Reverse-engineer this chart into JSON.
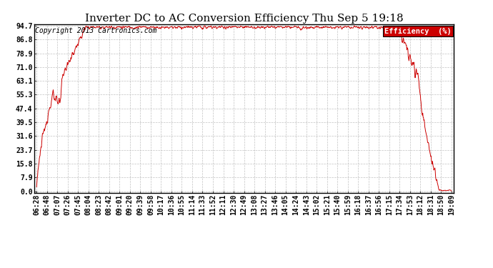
{
  "title": "Inverter DC to AC Conversion Efficiency Thu Sep 5 19:18",
  "copyright": "Copyright 2013 Cartronics.com",
  "legend_label": "Efficiency  (%)",
  "legend_bg": "#cc0000",
  "legend_fg": "#ffffff",
  "ymin": 0.0,
  "ymax": 94.7,
  "yticks": [
    0.0,
    7.9,
    15.8,
    23.7,
    31.6,
    39.5,
    47.4,
    55.3,
    63.1,
    71.0,
    78.9,
    86.8,
    94.7
  ],
  "ytick_labels": [
    "0.0",
    "7.9",
    "15.8",
    "23.7",
    "31.6",
    "39.5",
    "47.4",
    "55.3",
    "63.1",
    "71.0",
    "78.9",
    "86.8",
    "94.7"
  ],
  "xtick_labels": [
    "06:28",
    "06:48",
    "07:07",
    "07:26",
    "07:45",
    "08:04",
    "08:23",
    "08:42",
    "09:01",
    "09:20",
    "09:39",
    "09:58",
    "10:17",
    "10:36",
    "10:55",
    "11:14",
    "11:33",
    "11:52",
    "12:11",
    "12:30",
    "12:49",
    "13:08",
    "13:27",
    "13:46",
    "14:05",
    "14:24",
    "14:43",
    "15:02",
    "15:21",
    "15:40",
    "15:59",
    "16:18",
    "16:37",
    "16:56",
    "17:15",
    "17:34",
    "17:53",
    "18:12",
    "18:31",
    "18:50",
    "19:09"
  ],
  "line_color": "#cc0000",
  "bg_color": "#ffffff",
  "plot_bg_color": "#ffffff",
  "grid_color": "#bbbbbb",
  "title_fontsize": 11,
  "copyright_fontsize": 7,
  "tick_fontsize": 7
}
